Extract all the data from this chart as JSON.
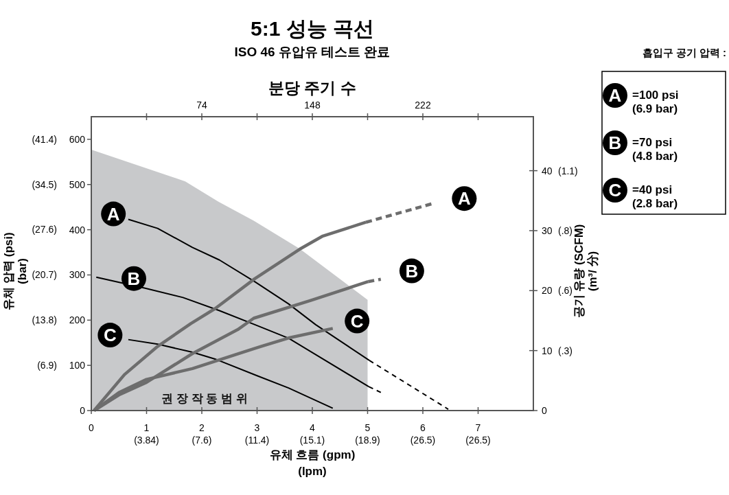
{
  "chart_data": {
    "type": "line",
    "title": "5:1 성능 곡선",
    "subtitle": "ISO 46 유압유 테스트 완료",
    "xlabel": "유체 흐름 (gpm)\n(lpm)",
    "x2label": "분당 주기 수",
    "ylabel": "유체 압력 (psi)\n(bar)",
    "y2label": "공기 유량 (SCFM)\n(m³/ 分)",
    "legend_title": "흡입구 공기 압력 :",
    "xlim": [
      0,
      8
    ],
    "ylim": [
      0,
      650
    ],
    "y2lim": [
      0,
      49
    ],
    "x2lim": [
      0,
      296
    ],
    "xticks": [
      0,
      1,
      2,
      3,
      4,
      5,
      6,
      7
    ],
    "x2ticks": [
      {
        "value": 37,
        "label": null
      },
      74,
      {
        "value": 111,
        "label": null
      },
      148,
      {
        "value": 185,
        "label": null
      },
      222,
      {
        "value": 259,
        "label": null
      }
    ],
    "yticks": [
      0,
      100,
      200,
      300,
      400,
      500,
      600
    ],
    "y2ticks": [
      0,
      10,
      20,
      30,
      40
    ],
    "y3lim": [
      0,
      44.82
    ],
    "y3ticks": [
      {
        "value": 6.9,
        "label": "(6.9)"
      },
      {
        "value": 13.8,
        "label": "(13.8)"
      },
      {
        "value": 20.7,
        "label": "(20.7)"
      },
      {
        "value": 27.6,
        "label": "(27.6)"
      },
      {
        "value": 34.5,
        "label": "(34.5)"
      },
      {
        "value": 41.4,
        "label": "(41.4)"
      }
    ],
    "grid": false,
    "marker": "none",
    "series": [
      {
        "type": "area",
        "color": "#c8c9cb",
        "x": [
          0,
          1.7,
          2.3,
          2.94,
          3.77,
          4.39,
          5
        ],
        "values": [
          577,
          507,
          462,
          420,
          358,
          301,
          245
        ]
      },
      {
        "type": "line",
        "color": "#000000",
        "line_style": "solid",
        "x": [
          0.67,
          1.2,
          1.83,
          2.32,
          2.96,
          3.57,
          4.06,
          5.03
        ],
        "values": [
          423,
          403,
          361,
          333,
          285,
          236,
          190,
          111
        ]
      },
      {
        "type": "line",
        "color": "#000000",
        "line_style": "dashed",
        "x": [
          5.03,
          6.46
        ],
        "values": [
          111,
          3
        ]
      },
      {
        "type": "line",
        "color": "#000000",
        "line_style": "solid",
        "x": [
          0.09,
          0.96,
          1.66,
          2.32,
          2.96,
          3.57,
          5.02
        ],
        "values": [
          295,
          271,
          250,
          221,
          190,
          160,
          53
        ]
      },
      {
        "type": "line",
        "color": "#000000",
        "line_style": "dashed",
        "x": [
          5.02,
          5.24
        ],
        "values": [
          53,
          40
        ]
      },
      {
        "type": "line",
        "color": "#000000",
        "line_style": "solid",
        "x": [
          0.67,
          1.2,
          1.83,
          2.24,
          3.0,
          3.57,
          4.37
        ],
        "values": [
          157,
          147,
          129,
          114,
          77,
          50,
          5
        ]
      },
      {
        "type": "line",
        "axis": "y2",
        "color": "#6d6d6d",
        "line_style": "solid",
        "x": [
          0.05,
          0.6,
          1.2,
          1.8,
          2.24,
          2.96,
          3.77,
          4.19,
          4.97
        ],
        "values": [
          0,
          6,
          10.7,
          14.5,
          17,
          22,
          26.9,
          29.1,
          31.4
        ]
      },
      {
        "type": "line",
        "axis": "y2",
        "color": "#6d6d6d",
        "line_style": "dashed",
        "x": [
          4.97,
          6.21
        ],
        "values": [
          31.4,
          34.6
        ]
      },
      {
        "type": "line",
        "axis": "y2",
        "color": "#6d6d6d",
        "line_style": "solid",
        "x": [
          0.05,
          0.5,
          1.0,
          1.83,
          2.65,
          2.94,
          3.98,
          5.01
        ],
        "values": [
          0,
          2.6,
          4.7,
          9.5,
          13.5,
          15.4,
          18.4,
          21.5
        ]
      },
      {
        "type": "line",
        "axis": "y2",
        "color": "#6d6d6d",
        "line_style": "dashed",
        "x": [
          5.01,
          5.24
        ],
        "values": [
          21.5,
          21.9
        ]
      },
      {
        "type": "line",
        "axis": "y2",
        "color": "#6d6d6d",
        "line_style": "solid",
        "x": [
          0.05,
          0.5,
          1.0,
          1.83,
          3.07,
          3.57,
          4.37
        ],
        "values": [
          0,
          3,
          5.2,
          7,
          10.7,
          12.1,
          13.7
        ]
      }
    ],
    "annotations": [
      "권 장   작 동   범 위",
      "A",
      "=100 psi\n(6.9 bar)",
      "B",
      "=70 psi\n(4.8 bar)",
      "C",
      "=40 psi\n(2.8 bar)",
      "(3.84)",
      "(7.6)",
      "(11.4)",
      "(15.1)",
      "(18.9)",
      "(26.5)",
      "(26.5)",
      "(.3)",
      "(.6)",
      "(.8)",
      "(1.1)",
      {
        "text": "A",
        "x": 0.4,
        "y": 435
      },
      {
        "text": "B",
        "x": 0.77,
        "y": 292
      },
      {
        "text": "C",
        "x": 0.34,
        "y": 167
      },
      {
        "text": "A",
        "x": 6.75,
        "y": 469
      },
      {
        "text": "B",
        "x": 5.8,
        "y": 309
      },
      {
        "text": "C",
        "x": 4.81,
        "y": 198
      }
    ]
  }
}
